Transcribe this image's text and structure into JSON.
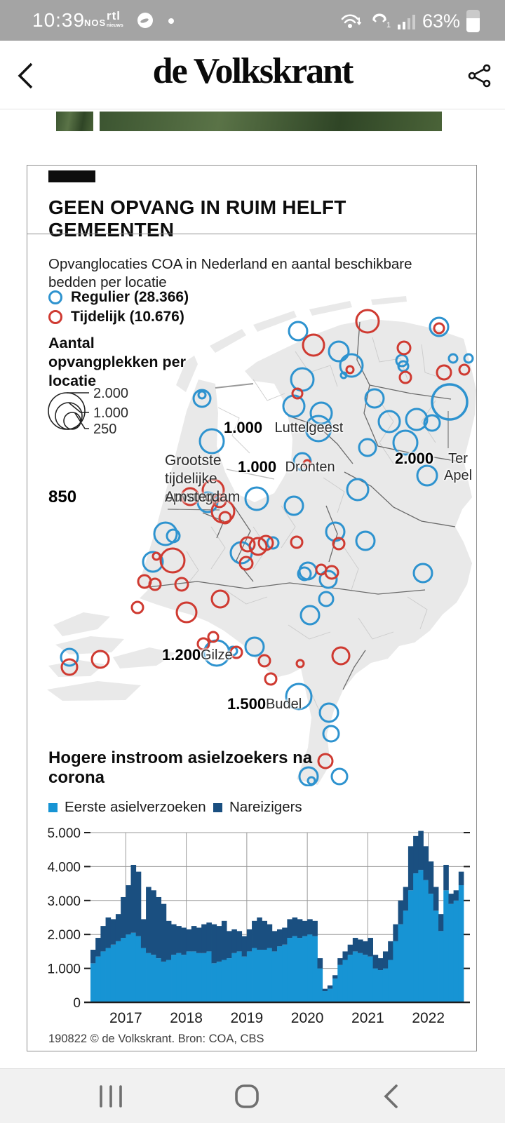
{
  "status_bar": {
    "time": "10:39",
    "nos": "NOS",
    "rtl": "rtl",
    "rtl_sub": "nieuws",
    "battery": "63%"
  },
  "header": {
    "title": "de Volkskrant"
  },
  "card": {
    "title": "GEEN OPVANG IN RUIM HELFT GEMEENTEN",
    "subtitle": "Opvanglocaties COA in Nederland en aantal beschikbare bedden per locatie",
    "legend": [
      {
        "label": "Regulier (28.366)"
      },
      {
        "label": "Tijdelijk (10.676)"
      }
    ],
    "size_legend": {
      "title": "Aantal opvangplekken per locatie",
      "sizes": [
        "2.000",
        "1.000",
        "250"
      ]
    },
    "annotation": {
      "line1": "Grootste",
      "line2": "tijdelijke opvang,",
      "line3": "Amsterdam",
      "value": "850"
    },
    "map_labels": [
      {
        "name": "Luttelgeest",
        "value": "1.000"
      },
      {
        "name": "Dronten",
        "value": "1.000"
      },
      {
        "name": "Ter Apel",
        "value": "2.000"
      },
      {
        "name": "Gilze",
        "value": "1.200"
      },
      {
        "name": "Budel",
        "value": "1.500"
      }
    ],
    "section2_title": "Hogere instroom asielzoekers na corona",
    "chart_legend": [
      {
        "label": "Eerste asielverzoeken"
      },
      {
        "label": "Nareizigers"
      }
    ],
    "footer": "190822 © de Volkskrant. Bron: COA, CBS",
    "colors": {
      "regulier": "#2e93cf",
      "tijdelijk": "#cf3a31",
      "eerste": "#1794d4",
      "nareizigers": "#1a4f80"
    },
    "map_points": [
      [
        227,
        147,
        12,
        "b"
      ],
      [
        227,
        142,
        5,
        "b"
      ],
      [
        241,
        208,
        17,
        "b"
      ],
      [
        235,
        295,
        14,
        "b"
      ],
      [
        305,
        290,
        16,
        "b"
      ],
      [
        358,
        300,
        13,
        "b"
      ],
      [
        175,
        340,
        16,
        "b"
      ],
      [
        186,
        343,
        9,
        "b"
      ],
      [
        157,
        380,
        14,
        "b"
      ],
      [
        283,
        367,
        15,
        "b"
      ],
      [
        328,
        353,
        8,
        "b"
      ],
      [
        38,
        516,
        12,
        "b"
      ],
      [
        248,
        510,
        18,
        "b"
      ],
      [
        271,
        507,
        6,
        "b"
      ],
      [
        302,
        501,
        13,
        "b"
      ],
      [
        365,
        572,
        18,
        "b"
      ],
      [
        408,
        595,
        13,
        "b"
      ],
      [
        411,
        625,
        11,
        "b"
      ],
      [
        379,
        686,
        13,
        "b"
      ],
      [
        383,
        692,
        5,
        "b"
      ],
      [
        423,
        686,
        11,
        "b"
      ],
      [
        417,
        337,
        13,
        "b"
      ],
      [
        460,
        350,
        13,
        "b"
      ],
      [
        542,
        396,
        13,
        "b"
      ],
      [
        378,
        393,
        12,
        "b"
      ],
      [
        373,
        397,
        9,
        "b"
      ],
      [
        407,
        405,
        12,
        "b"
      ],
      [
        404,
        433,
        10,
        "b"
      ],
      [
        381,
        456,
        13,
        "b"
      ],
      [
        548,
        257,
        14,
        "b"
      ],
      [
        449,
        277,
        15,
        "b"
      ],
      [
        393,
        190,
        18,
        "b"
      ],
      [
        370,
        237,
        12,
        "b"
      ],
      [
        397,
        168,
        15,
        "b"
      ],
      [
        358,
        158,
        15,
        "b"
      ],
      [
        370,
        120,
        16,
        "b"
      ],
      [
        364,
        51,
        13,
        "b"
      ],
      [
        422,
        80,
        14,
        "b"
      ],
      [
        440,
        100,
        16,
        "b"
      ],
      [
        429,
        114,
        4,
        "b"
      ],
      [
        512,
        93,
        8,
        "b"
      ],
      [
        514,
        101,
        7,
        "b"
      ],
      [
        565,
        45,
        13,
        "b"
      ],
      [
        585,
        90,
        6,
        "b"
      ],
      [
        607,
        90,
        6,
        "b"
      ],
      [
        533,
        177,
        15,
        "b"
      ],
      [
        580,
        152,
        25,
        "b"
      ],
      [
        555,
        182,
        11,
        "b"
      ],
      [
        494,
        180,
        15,
        "b"
      ],
      [
        517,
        210,
        17,
        "b"
      ],
      [
        473,
        147,
        13,
        "b"
      ],
      [
        463,
        217,
        12,
        "b"
      ],
      [
        210,
        287,
        12,
        "r"
      ],
      [
        243,
        278,
        15,
        "r"
      ],
      [
        252,
        293,
        9,
        "r"
      ],
      [
        257,
        308,
        16,
        "r"
      ],
      [
        260,
        317,
        8,
        "r"
      ],
      [
        162,
        372,
        5,
        "r"
      ],
      [
        185,
        378,
        17,
        "r"
      ],
      [
        145,
        408,
        9,
        "r"
      ],
      [
        160,
        412,
        8,
        "r"
      ],
      [
        198,
        412,
        9,
        "r"
      ],
      [
        292,
        355,
        10,
        "r"
      ],
      [
        307,
        358,
        12,
        "r"
      ],
      [
        318,
        353,
        10,
        "r"
      ],
      [
        290,
        382,
        9,
        "r"
      ],
      [
        362,
        352,
        8,
        "r"
      ],
      [
        38,
        530,
        11,
        "r"
      ],
      [
        82,
        519,
        12,
        "r"
      ],
      [
        135,
        445,
        8,
        "r"
      ],
      [
        205,
        452,
        14,
        "r"
      ],
      [
        253,
        433,
        12,
        "r"
      ],
      [
        229,
        497,
        8,
        "r"
      ],
      [
        243,
        487,
        7,
        "r"
      ],
      [
        276,
        509,
        8,
        "r"
      ],
      [
        316,
        521,
        8,
        "r"
      ],
      [
        325,
        547,
        8,
        "r"
      ],
      [
        367,
        525,
        5,
        "r"
      ],
      [
        425,
        514,
        12,
        "r"
      ],
      [
        403,
        664,
        10,
        "r"
      ],
      [
        422,
        354,
        8,
        "r"
      ],
      [
        397,
        391,
        7,
        "r"
      ],
      [
        412,
        395,
        9,
        "r"
      ],
      [
        386,
        71,
        15,
        "r"
      ],
      [
        463,
        37,
        16,
        "r"
      ],
      [
        515,
        75,
        9,
        "r"
      ],
      [
        517,
        117,
        8,
        "r"
      ],
      [
        572,
        110,
        10,
        "r"
      ],
      [
        601,
        106,
        7,
        "r"
      ],
      [
        565,
        47,
        7,
        "r"
      ],
      [
        438,
        106,
        5,
        "r"
      ],
      [
        377,
        240,
        5,
        "r"
      ],
      [
        363,
        140,
        7,
        "r"
      ]
    ]
  },
  "chart_data": {
    "type": "bar",
    "stacked": true,
    "title": "Hogere instroom asielzoekers na corona",
    "x_start": "2016-06",
    "x_end": "2022-07",
    "frequency": "monthly",
    "ylim": [
      0,
      5000
    ],
    "y_tick_values": [
      0,
      1000,
      2000,
      3000,
      4000,
      5000
    ],
    "y_tick_labels": [
      "0",
      "1.000",
      "2.000",
      "3.000",
      "4.000",
      "5.000"
    ],
    "x_tick_labels": [
      "2017",
      "2018",
      "2019",
      "2020",
      "2021",
      "2022"
    ],
    "x_tick_month_indices": [
      7,
      19,
      31,
      43,
      55,
      67
    ],
    "grid": true,
    "legend_position": "top",
    "series": [
      {
        "name": "Eerste asielverzoeken",
        "values": [
          1150,
          1350,
          1500,
          1600,
          1700,
          1800,
          1900,
          2000,
          2050,
          1950,
          1600,
          1450,
          1400,
          1300,
          1200,
          1250,
          1400,
          1450,
          1400,
          1500,
          1500,
          1450,
          1450,
          1500,
          1150,
          1200,
          1250,
          1300,
          1450,
          1500,
          1350,
          1500,
          1600,
          1550,
          1550,
          1600,
          1500,
          1650,
          1700,
          1900,
          1950,
          1900,
          1950,
          2000,
          1950,
          1000,
          330,
          400,
          700,
          1100,
          1250,
          1400,
          1500,
          1450,
          1400,
          1350,
          1000,
          950,
          1000,
          1250,
          1800,
          2300,
          2700,
          3300,
          3800,
          3900,
          3600,
          3200,
          2700,
          2100,
          3300,
          2900,
          3000,
          3450
        ]
      },
      {
        "name": "Nareizigers",
        "values": [
          400,
          550,
          750,
          900,
          750,
          800,
          1200,
          1450,
          2000,
          1900,
          850,
          1950,
          1900,
          1800,
          1700,
          1150,
          900,
          800,
          800,
          650,
          750,
          750,
          850,
          850,
          1150,
          1050,
          1150,
          800,
          700,
          600,
          600,
          650,
          800,
          950,
          850,
          700,
          600,
          500,
          500,
          550,
          550,
          550,
          450,
          450,
          450,
          300,
          70,
          100,
          100,
          200,
          250,
          300,
          400,
          400,
          400,
          550,
          400,
          350,
          500,
          550,
          500,
          700,
          700,
          1300,
          1100,
          1150,
          1000,
          950,
          700,
          500,
          750,
          300,
          300,
          400
        ]
      }
    ],
    "source": "COA, CBS"
  }
}
